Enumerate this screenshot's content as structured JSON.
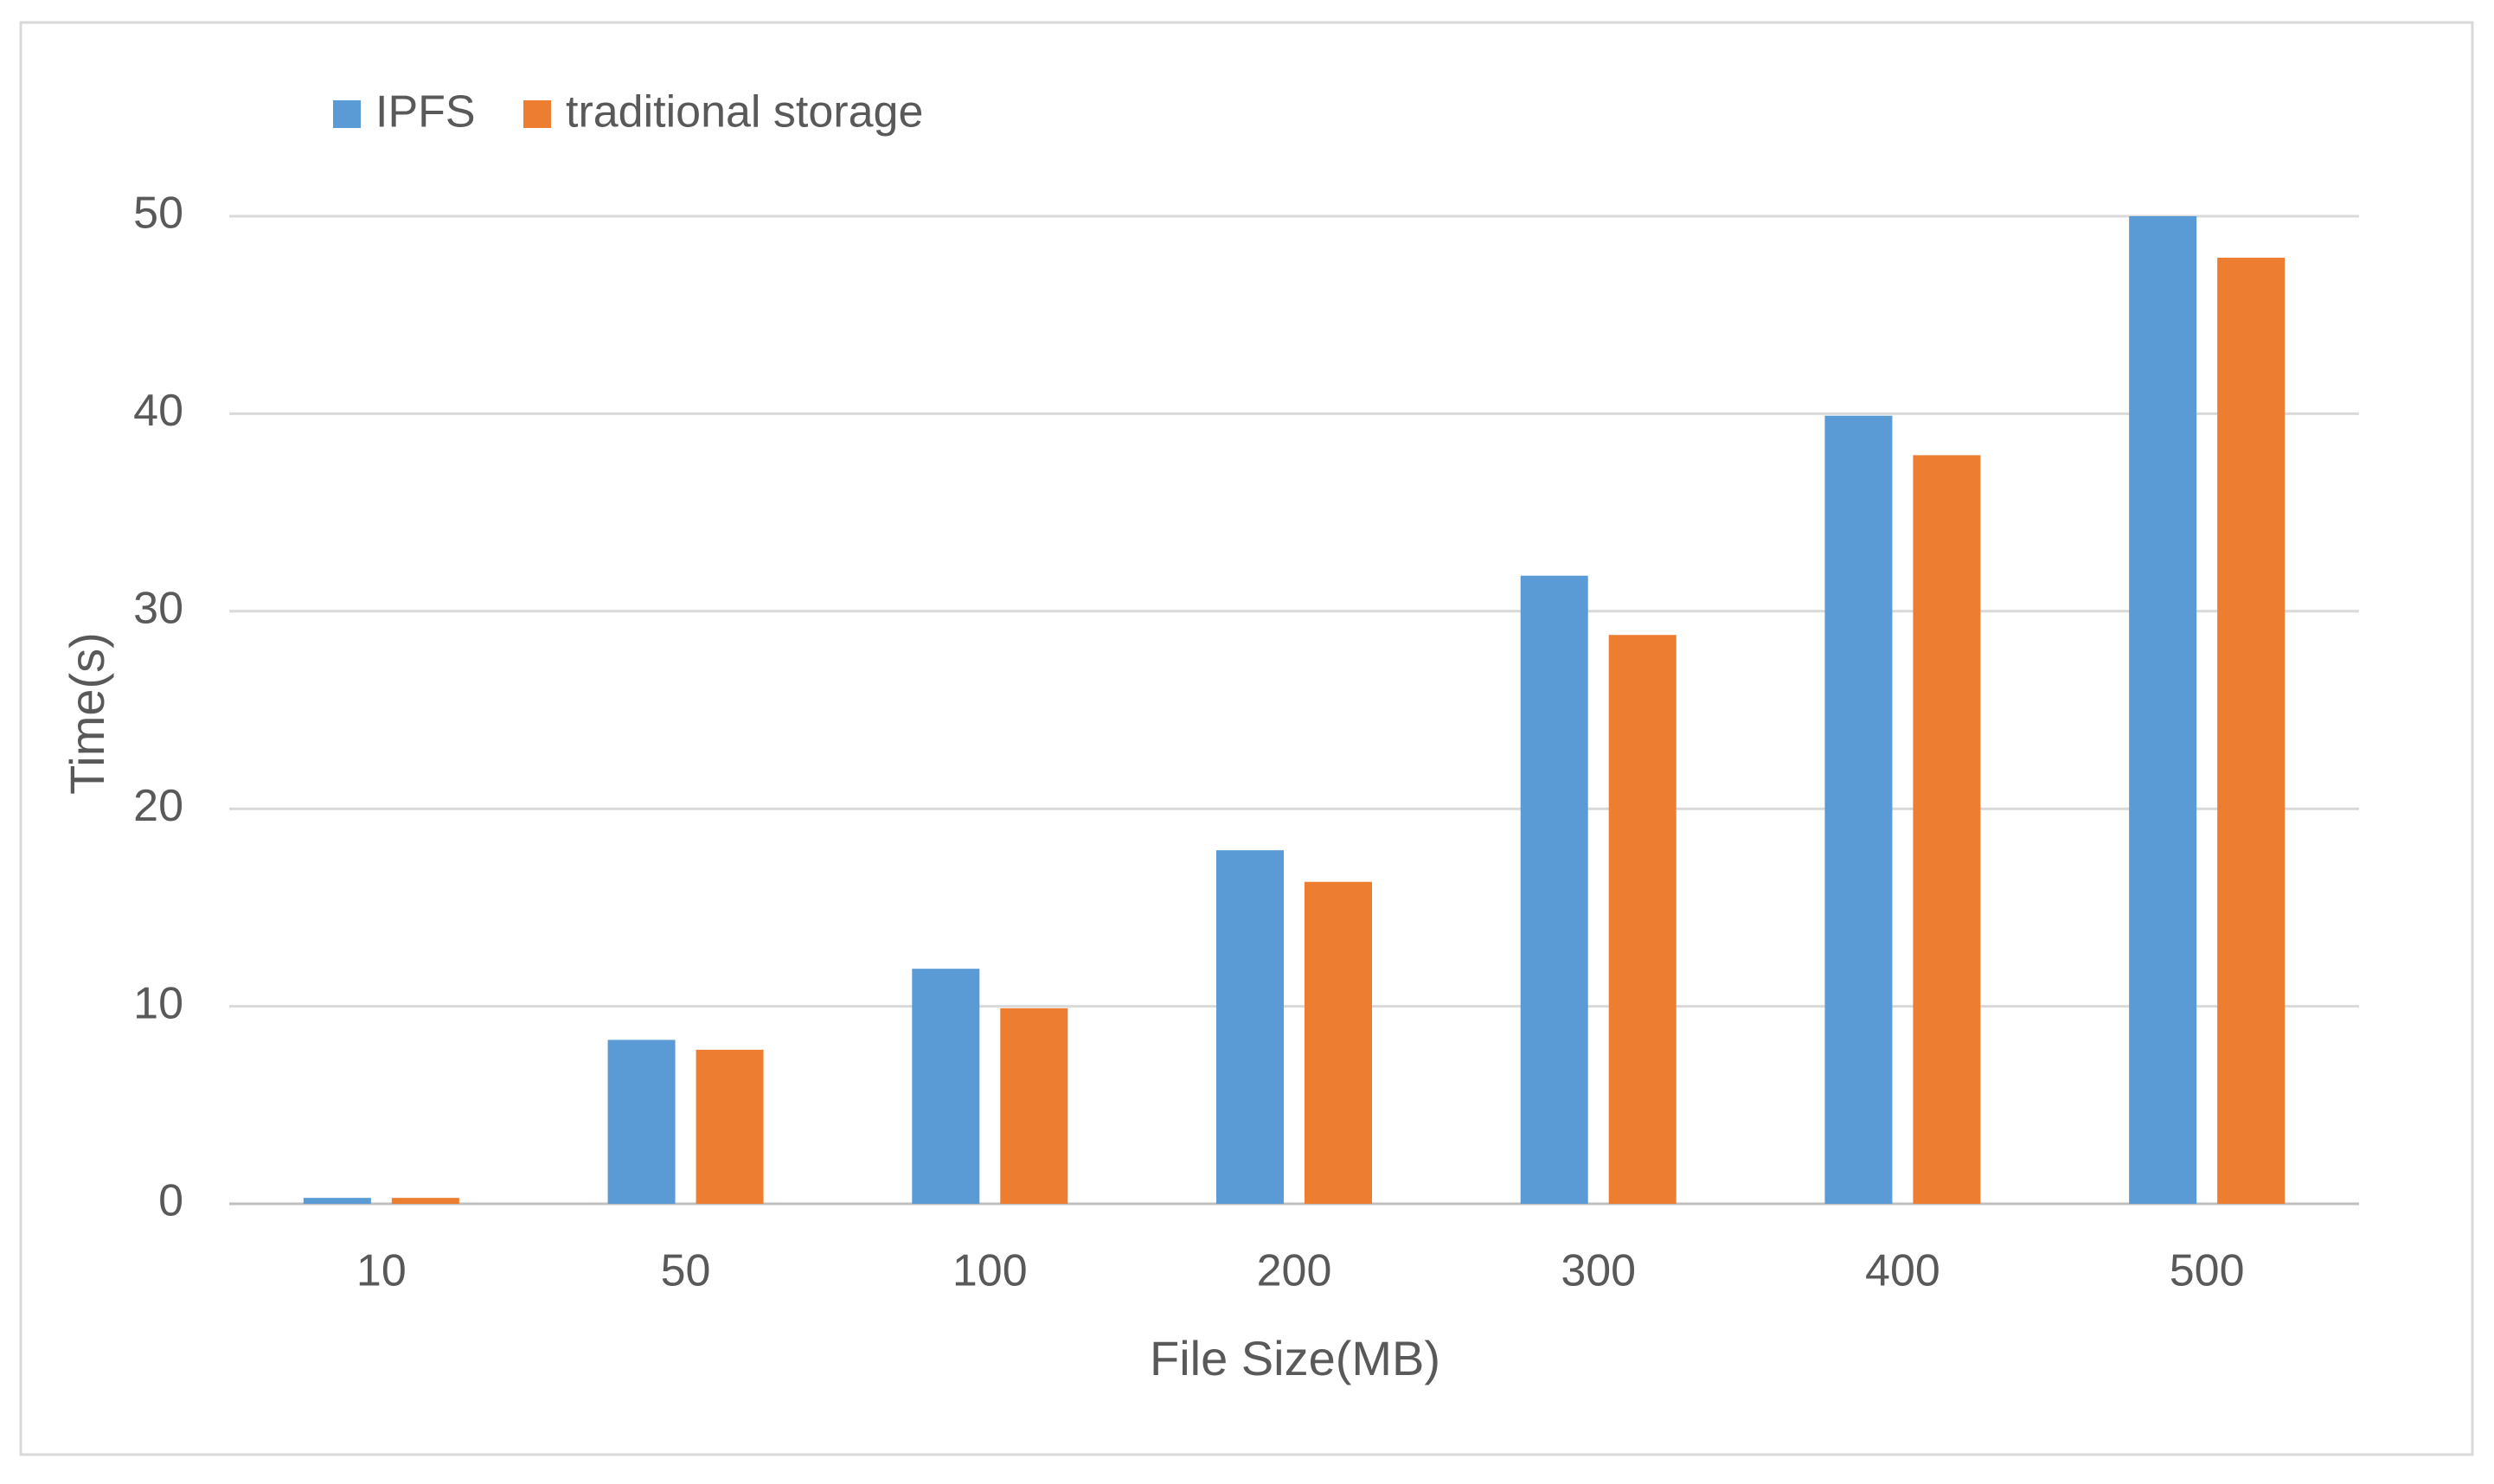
{
  "chart_data": {
    "type": "bar",
    "title": "",
    "xlabel": "File Size(MB)",
    "ylabel": "Time(s)",
    "categories": [
      "10",
      "50",
      "100",
      "200",
      "300",
      "400",
      "500"
    ],
    "series": [
      {
        "name": "IPFS",
        "color": "#5B9BD5",
        "values": [
          0.3,
          8.3,
          11.9,
          17.9,
          31.8,
          39.9,
          50.0
        ]
      },
      {
        "name": "traditional storage",
        "color": "#ED7D31",
        "values": [
          0.3,
          7.8,
          9.9,
          16.3,
          28.8,
          37.9,
          47.9
        ]
      }
    ],
    "ylim": [
      0,
      50
    ],
    "yticks": [
      "0",
      "10",
      "20",
      "30",
      "40",
      "50"
    ],
    "grid": true,
    "legend_position": "top-left"
  }
}
